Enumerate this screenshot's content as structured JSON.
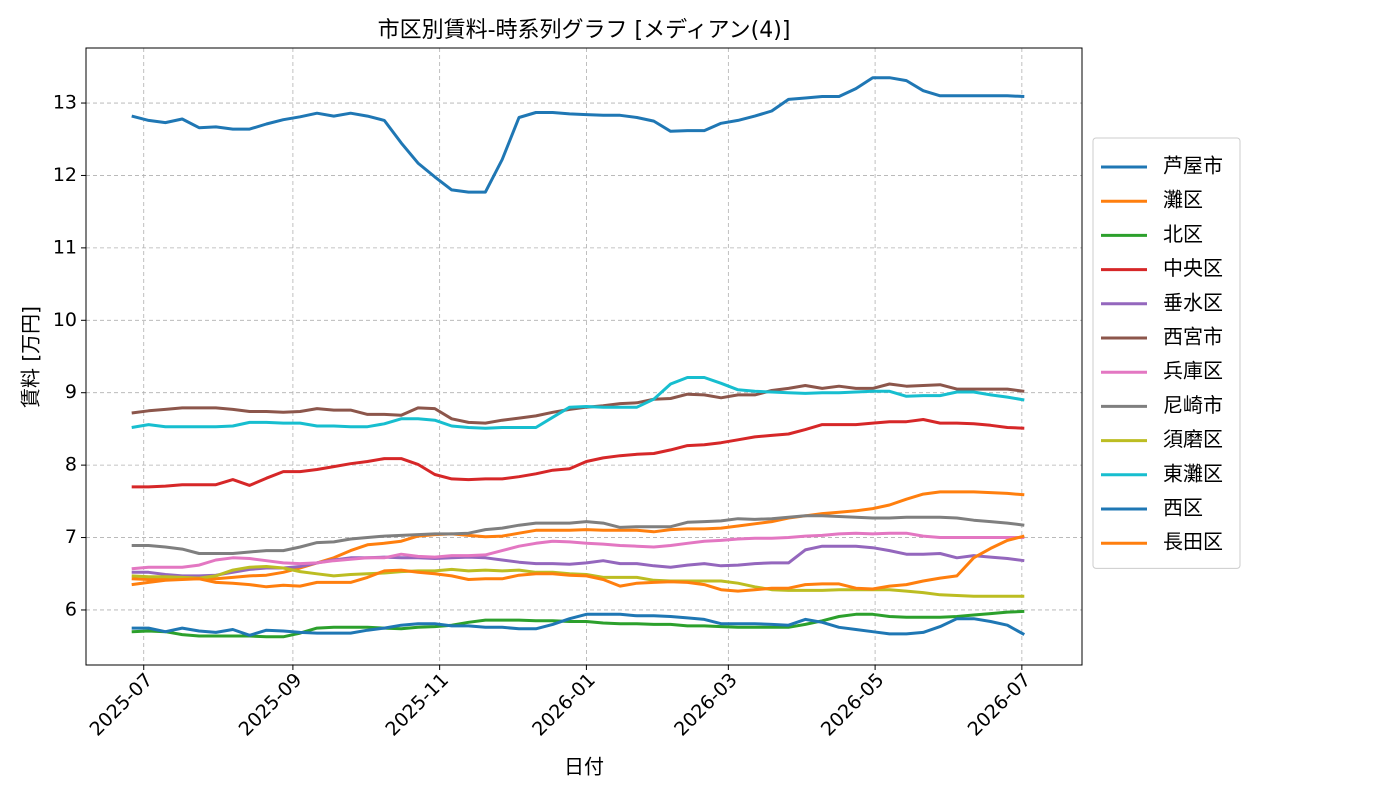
{
  "chart_data": {
    "type": "line",
    "title": "市区別賃料-時系列グラフ [メディアン(4)]",
    "x_label": "日付",
    "y_label": "賃料 [万円]",
    "x": [
      "2025-06-26",
      "2025-07-03",
      "2025-07-10",
      "2025-07-17",
      "2025-07-24",
      "2025-07-31",
      "2025-08-07",
      "2025-08-14",
      "2025-08-21",
      "2025-08-28",
      "2025-09-04",
      "2025-09-11",
      "2025-09-18",
      "2025-09-25",
      "2025-10-02",
      "2025-10-09",
      "2025-10-16",
      "2025-10-23",
      "2025-10-30",
      "2025-11-06",
      "2025-11-13",
      "2025-11-20",
      "2025-11-27",
      "2025-12-04",
      "2025-12-11",
      "2025-12-18",
      "2025-12-25",
      "2026-01-01",
      "2026-01-08",
      "2026-01-15",
      "2026-01-22",
      "2026-01-29",
      "2026-02-05",
      "2026-02-12",
      "2026-02-19",
      "2026-02-26",
      "2026-03-05",
      "2026-03-12",
      "2026-03-19",
      "2026-03-26",
      "2026-04-02",
      "2026-04-09",
      "2026-04-16",
      "2026-04-23",
      "2026-04-30",
      "2026-05-07",
      "2026-05-14",
      "2026-05-21",
      "2026-05-28",
      "2026-06-04",
      "2026-06-11",
      "2026-06-18",
      "2026-06-25",
      "2026-07-02"
    ],
    "xlim": [
      "2025-06-07",
      "2026-07-26"
    ],
    "xticks": [
      {
        "value": "2025-07-01",
        "label": "2025-07"
      },
      {
        "value": "2025-09-01",
        "label": "2025-09"
      },
      {
        "value": "2025-11-01",
        "label": "2025-11"
      },
      {
        "value": "2026-01-01",
        "label": "2026-01"
      },
      {
        "value": "2026-03-01",
        "label": "2026-03"
      },
      {
        "value": "2026-05-01",
        "label": "2026-05"
      },
      {
        "value": "2026-07-01",
        "label": "2026-07"
      }
    ],
    "ylim": [
      5.24,
      13.76
    ],
    "yticks": [
      6,
      7,
      8,
      9,
      10,
      11,
      12,
      13
    ],
    "grid": true,
    "legend": "right",
    "series": [
      {
        "name": "芦屋市",
        "color": "#1f77b4",
        "values": [
          12.82,
          12.76,
          12.73,
          12.78,
          12.66,
          12.67,
          12.64,
          12.64,
          12.71,
          12.77,
          12.81,
          12.86,
          12.82,
          12.86,
          12.82,
          12.76,
          12.45,
          12.17,
          11.98,
          11.8,
          11.77,
          11.77,
          12.22,
          12.8,
          12.87,
          12.87,
          12.85,
          12.84,
          12.83,
          12.83,
          12.8,
          12.75,
          12.61,
          12.62,
          12.62,
          12.72,
          12.76,
          12.82,
          12.89,
          13.05,
          13.07,
          13.09,
          13.09,
          13.2,
          13.35,
          13.35,
          13.31,
          13.17,
          13.1,
          13.1,
          13.1,
          13.1,
          13.1,
          13.09
        ]
      },
      {
        "name": "灘区",
        "color": "#ff7f0e",
        "values": [
          6.43,
          6.42,
          6.42,
          6.43,
          6.43,
          6.43,
          6.45,
          6.47,
          6.48,
          6.52,
          6.58,
          6.65,
          6.72,
          6.82,
          6.9,
          6.92,
          6.95,
          7.02,
          7.04,
          7.05,
          7.03,
          7.01,
          7.02,
          7.06,
          7.1,
          7.1,
          7.1,
          7.11,
          7.1,
          7.1,
          7.1,
          7.08,
          7.11,
          7.12,
          7.12,
          7.13,
          7.16,
          7.19,
          7.22,
          7.27,
          7.3,
          7.33,
          7.35,
          7.37,
          7.4,
          7.45,
          7.53,
          7.6,
          7.63,
          7.63,
          7.63,
          7.62,
          7.61,
          7.59
        ]
      },
      {
        "name": "北区",
        "color": "#2ca02c",
        "values": [
          5.7,
          5.71,
          5.7,
          5.66,
          5.64,
          5.64,
          5.64,
          5.64,
          5.63,
          5.63,
          5.68,
          5.75,
          5.76,
          5.76,
          5.76,
          5.75,
          5.74,
          5.76,
          5.77,
          5.79,
          5.83,
          5.86,
          5.86,
          5.86,
          5.85,
          5.85,
          5.84,
          5.84,
          5.82,
          5.81,
          5.81,
          5.8,
          5.8,
          5.78,
          5.78,
          5.77,
          5.76,
          5.76,
          5.76,
          5.76,
          5.8,
          5.85,
          5.91,
          5.94,
          5.94,
          5.91,
          5.9,
          5.9,
          5.9,
          5.91,
          5.93,
          5.95,
          5.97,
          5.98
        ]
      },
      {
        "name": "中央区",
        "color": "#d62728",
        "values": [
          7.7,
          7.7,
          7.71,
          7.73,
          7.73,
          7.73,
          7.8,
          7.72,
          7.82,
          7.91,
          7.91,
          7.94,
          7.98,
          8.02,
          8.05,
          8.09,
          8.09,
          8.01,
          7.87,
          7.81,
          7.8,
          7.81,
          7.81,
          7.84,
          7.88,
          7.93,
          7.95,
          8.05,
          8.1,
          8.13,
          8.15,
          8.16,
          8.21,
          8.27,
          8.28,
          8.31,
          8.35,
          8.39,
          8.41,
          8.43,
          8.49,
          8.56,
          8.56,
          8.56,
          8.58,
          8.6,
          8.6,
          8.63,
          8.58,
          8.58,
          8.57,
          8.55,
          8.52,
          8.51
        ]
      },
      {
        "name": "垂水区",
        "color": "#9467bd",
        "values": [
          6.52,
          6.52,
          6.49,
          6.47,
          6.47,
          6.48,
          6.52,
          6.56,
          6.58,
          6.58,
          6.6,
          6.65,
          6.69,
          6.72,
          6.72,
          6.73,
          6.72,
          6.72,
          6.71,
          6.72,
          6.73,
          6.72,
          6.69,
          6.66,
          6.64,
          6.64,
          6.63,
          6.65,
          6.68,
          6.64,
          6.64,
          6.61,
          6.59,
          6.62,
          6.64,
          6.61,
          6.62,
          6.64,
          6.65,
          6.65,
          6.83,
          6.88,
          6.88,
          6.88,
          6.86,
          6.82,
          6.77,
          6.77,
          6.78,
          6.72,
          6.75,
          6.73,
          6.71,
          6.68
        ]
      },
      {
        "name": "西宮市",
        "color": "#8c564b",
        "values": [
          8.72,
          8.75,
          8.77,
          8.79,
          8.79,
          8.79,
          8.77,
          8.74,
          8.74,
          8.73,
          8.74,
          8.78,
          8.76,
          8.76,
          8.7,
          8.7,
          8.69,
          8.79,
          8.78,
          8.64,
          8.59,
          8.58,
          8.62,
          8.65,
          8.68,
          8.73,
          8.77,
          8.8,
          8.82,
          8.85,
          8.86,
          8.91,
          8.92,
          8.98,
          8.97,
          8.93,
          8.97,
          8.97,
          9.03,
          9.06,
          9.1,
          9.06,
          9.09,
          9.06,
          9.06,
          9.12,
          9.09,
          9.1,
          9.11,
          9.05,
          9.05,
          9.05,
          9.05,
          9.02
        ]
      },
      {
        "name": "兵庫区",
        "color": "#e377c2",
        "values": [
          6.57,
          6.59,
          6.59,
          6.59,
          6.62,
          6.69,
          6.72,
          6.71,
          6.68,
          6.65,
          6.64,
          6.65,
          6.68,
          6.7,
          6.72,
          6.72,
          6.77,
          6.74,
          6.73,
          6.75,
          6.75,
          6.76,
          6.82,
          6.88,
          6.92,
          6.95,
          6.94,
          6.92,
          6.91,
          6.89,
          6.88,
          6.87,
          6.89,
          6.92,
          6.95,
          6.96,
          6.98,
          6.99,
          6.99,
          7.0,
          7.02,
          7.03,
          7.05,
          7.06,
          7.05,
          7.06,
          7.06,
          7.02,
          7.0,
          7.0,
          7.0,
          7.0,
          7.0,
          7.0
        ]
      },
      {
        "name": "尼崎市",
        "color": "#7f7f7f",
        "values": [
          6.89,
          6.89,
          6.87,
          6.84,
          6.78,
          6.78,
          6.78,
          6.8,
          6.82,
          6.82,
          6.87,
          6.93,
          6.94,
          6.98,
          7.0,
          7.02,
          7.03,
          7.04,
          7.05,
          7.05,
          7.06,
          7.11,
          7.13,
          7.17,
          7.2,
          7.2,
          7.2,
          7.22,
          7.2,
          7.14,
          7.15,
          7.15,
          7.15,
          7.21,
          7.22,
          7.23,
          7.26,
          7.25,
          7.26,
          7.28,
          7.3,
          7.3,
          7.29,
          7.28,
          7.27,
          7.27,
          7.28,
          7.28,
          7.28,
          7.27,
          7.24,
          7.22,
          7.2,
          7.17
        ]
      },
      {
        "name": "須磨区",
        "color": "#bcbd22",
        "values": [
          6.47,
          6.46,
          6.46,
          6.45,
          6.44,
          6.47,
          6.55,
          6.59,
          6.6,
          6.58,
          6.53,
          6.5,
          6.47,
          6.49,
          6.5,
          6.51,
          6.53,
          6.54,
          6.54,
          6.56,
          6.54,
          6.55,
          6.54,
          6.55,
          6.52,
          6.52,
          6.5,
          6.49,
          6.45,
          6.45,
          6.45,
          6.41,
          6.4,
          6.4,
          6.4,
          6.4,
          6.37,
          6.32,
          6.28,
          6.27,
          6.27,
          6.27,
          6.28,
          6.28,
          6.28,
          6.28,
          6.26,
          6.24,
          6.21,
          6.2,
          6.19,
          6.19,
          6.19,
          6.19
        ]
      },
      {
        "name": "東灘区",
        "color": "#17becf",
        "values": [
          8.52,
          8.56,
          8.53,
          8.53,
          8.53,
          8.53,
          8.54,
          8.59,
          8.59,
          8.58,
          8.58,
          8.54,
          8.54,
          8.53,
          8.53,
          8.57,
          8.64,
          8.64,
          8.62,
          8.54,
          8.52,
          8.51,
          8.52,
          8.52,
          8.52,
          8.66,
          8.8,
          8.81,
          8.8,
          8.8,
          8.8,
          8.91,
          9.12,
          9.21,
          9.21,
          9.13,
          9.04,
          9.02,
          9.01,
          9.0,
          8.99,
          9.0,
          9.0,
          9.01,
          9.02,
          9.02,
          8.95,
          8.96,
          8.96,
          9.01,
          9.01,
          8.97,
          8.94,
          8.9
        ]
      },
      {
        "name": "西区",
        "color": "#1f77b4",
        "values": [
          5.75,
          5.75,
          5.7,
          5.75,
          5.71,
          5.69,
          5.73,
          5.65,
          5.72,
          5.71,
          5.69,
          5.68,
          5.68,
          5.68,
          5.72,
          5.75,
          5.79,
          5.81,
          5.81,
          5.78,
          5.78,
          5.76,
          5.76,
          5.74,
          5.74,
          5.8,
          5.88,
          5.94,
          5.94,
          5.94,
          5.92,
          5.92,
          5.91,
          5.89,
          5.87,
          5.81,
          5.81,
          5.81,
          5.8,
          5.79,
          5.87,
          5.83,
          5.76,
          5.73,
          5.7,
          5.67,
          5.67,
          5.69,
          5.77,
          5.88,
          5.88,
          5.84,
          5.79,
          5.66
        ]
      },
      {
        "name": "長田区",
        "color": "#ff7f0e",
        "values": [
          6.35,
          6.38,
          6.41,
          6.42,
          6.43,
          6.38,
          6.37,
          6.35,
          6.32,
          6.34,
          6.33,
          6.38,
          6.38,
          6.38,
          6.45,
          6.54,
          6.55,
          6.52,
          6.5,
          6.47,
          6.42,
          6.43,
          6.43,
          6.48,
          6.5,
          6.5,
          6.48,
          6.47,
          6.42,
          6.33,
          6.37,
          6.38,
          6.39,
          6.38,
          6.35,
          6.28,
          6.26,
          6.28,
          6.3,
          6.3,
          6.35,
          6.36,
          6.36,
          6.3,
          6.29,
          6.33,
          6.35,
          6.4,
          6.44,
          6.47,
          6.72,
          6.85,
          6.96,
          7.02
        ]
      }
    ]
  }
}
